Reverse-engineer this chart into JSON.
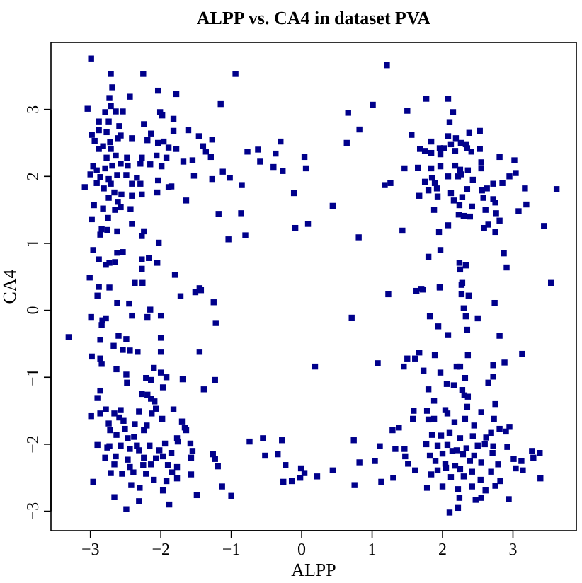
{
  "chart_data": {
    "type": "scatter",
    "title": "ALPP vs. CA4 in dataset PVA",
    "xlabel": "ALPP",
    "ylabel": "CA4",
    "marker": "square",
    "color": "#00008b",
    "xlim": [
      -3.56,
      3.9
    ],
    "ylim": [
      -3.29,
      4.0
    ],
    "xticks": [
      {
        "value": -3,
        "label": "−3"
      },
      {
        "value": -2,
        "label": "−2"
      },
      {
        "value": -1,
        "label": "−1"
      },
      0,
      1,
      2,
      3
    ],
    "yticks": [
      {
        "value": -3,
        "label": "−3"
      },
      {
        "value": -2,
        "label": "−2"
      },
      {
        "value": -1,
        "label": "−1"
      },
      0,
      1,
      2,
      3
    ],
    "x": [
      -2.99,
      -2.71,
      -2.25,
      -0.94,
      -2.69,
      -2.04,
      -1.78,
      -2.73,
      -2.44,
      -3.04,
      -2.71,
      -1.15,
      -2.79,
      -2.64,
      -2.54,
      -2.01,
      -1.98,
      -1.82,
      -2.88,
      -2.74,
      -2.59,
      -2.24,
      -2.88,
      -2.77,
      -2.98,
      -2.61,
      -2.57,
      -2.14,
      -1.82,
      -1.61,
      -2.41,
      -2.19,
      -1.96,
      -1.46,
      -1.27,
      -2.94,
      -2.82,
      -2.72,
      -2.88,
      -2.71,
      -2.04,
      -1.89,
      -1.78,
      -1.4,
      -1.36,
      -1.29,
      -0.77,
      -0.62,
      -0.3,
      -0.37,
      0.04,
      -2.77,
      -2.64,
      -2.48,
      -2.27,
      -2.06,
      -1.92,
      -1.68,
      -1.55,
      -0.59,
      -0.4,
      -0.27,
      0.06,
      -2.96,
      -2.91,
      -2.79,
      -2.69,
      -2.57,
      -2.47,
      -2.29,
      -2.15,
      -1.99,
      -3.0,
      -2.86,
      -2.74,
      -2.62,
      -2.49,
      -2.34,
      -1.53,
      -1.12,
      -1.02,
      -1.27,
      -0.85,
      -2.91,
      -2.71,
      -2.41,
      -2.29,
      -2.04,
      -1.89,
      -3.08,
      -2.81,
      -2.66,
      -2.56,
      -2.41,
      -2.27,
      -2.05,
      -1.85,
      -2.74,
      -2.61,
      -1.64,
      -0.11,
      -2.95,
      -2.82,
      -2.65,
      -2.57,
      -2.43,
      -2.98,
      -2.75,
      -1.18,
      -0.86,
      -2.41,
      -2.84,
      -2.76,
      -2.62,
      -2.24,
      -2.27,
      -1.04,
      -0.8,
      -0.09,
      0.09,
      -2.86,
      -2.03,
      -2.96,
      -2.62,
      -2.54,
      -2.88,
      -2.78,
      -2.73,
      -2.65,
      -2.27,
      -2.17,
      -2.05,
      -2.27,
      -3.01,
      -1.8,
      -2.88,
      -2.73,
      -2.37,
      -2.26,
      -1.45,
      -2.9,
      -1.72,
      -1.51,
      -1.43,
      -2.62,
      -2.45,
      -2.15,
      -1.25,
      -2.99,
      -2.83,
      -2.78,
      -2.84,
      -2.41,
      -2.19,
      -2.0,
      -1.22,
      -3.31,
      -2.86,
      -2.6,
      -2.49,
      -2.0,
      -2.67,
      -2.54,
      -2.44,
      -2.33,
      -2.0,
      -1.45,
      -2.98,
      -2.86,
      -2.84,
      -2.63,
      -2.49,
      -2.48,
      -2.1,
      -2.0,
      -1.92,
      -2.21,
      -2.14,
      -1.69,
      -1.23,
      -1.97,
      -1.39,
      -2.86,
      -2.9,
      -2.27,
      -2.19,
      -2.14,
      -2.09,
      -1.82,
      -2.07,
      -2.99,
      -2.86,
      -2.78,
      -2.57,
      -2.66,
      -2.59,
      -2.53,
      -2.31,
      -2.13,
      -1.98,
      -1.7,
      -2.74,
      -2.37,
      -2.2,
      -1.66,
      -2.72,
      -2.51,
      -2.24,
      -1.64,
      -2.63,
      -2.47,
      -2.38,
      -1.77,
      -1.58,
      -2.9,
      -2.73,
      -2.57,
      -2.34,
      -2.16,
      -1.94,
      -1.76,
      -2.76,
      -2.44,
      -2.31,
      -2.02,
      -1.85,
      -1.55,
      -1.26,
      -0.74,
      -0.55,
      -0.28,
      -2.79,
      -2.64,
      -2.47,
      -2.24,
      -2.07,
      -1.97,
      -1.57,
      -1.23,
      -0.52,
      -0.34,
      -2.66,
      -2.44,
      -2.25,
      -2.14,
      -1.9,
      -1.77,
      -1.19,
      -0.23,
      -0.01,
      -2.71,
      -2.55,
      -2.39,
      -2.21,
      -1.84,
      -1.57,
      0.04,
      0.22,
      -2.96,
      -2.1,
      -1.92,
      -1.77,
      -0.26,
      -0.14,
      -0.02,
      -2.42,
      -2.3,
      -1.97,
      -1.13,
      -2.66,
      -2.31,
      -1.88,
      -1.49,
      -1.0,
      -2.49,
      1.21,
      1.77,
      2.08,
      1.01,
      0.66,
      1.5,
      2.15,
      2.1,
      0.82,
      0.64,
      1.56,
      2.08,
      2.19,
      2.38,
      2.53,
      1.84,
      2.12,
      2.26,
      2.33,
      1.68,
      1.75,
      1.84,
      1.96,
      2.02,
      1.97,
      2.18,
      2.35,
      2.41,
      2.53,
      2.81,
      3.02,
      1.46,
      1.65,
      1.84,
      1.97,
      2.18,
      2.25,
      2.36,
      2.55,
      2.55,
      3.04,
      2.95,
      1.75,
      1.85,
      1.89,
      2.08,
      2.22,
      2.26,
      2.43,
      2.72,
      2.85,
      1.18,
      1.26,
      1.67,
      1.8,
      1.92,
      1.93,
      2.12,
      2.28,
      2.35,
      2.56,
      2.63,
      2.58,
      2.72,
      2.75,
      3.17,
      3.62,
      0.44,
      1.88,
      2.16,
      2.24,
      2.42,
      2.61,
      3.19,
      3.08,
      2.23,
      2.3,
      2.39,
      2.76,
      2.81,
      2.08,
      2.59,
      2.65,
      2.75,
      3.44,
      1.43,
      1.95,
      0.81,
      1.97,
      2.87,
      1.8,
      2.24,
      2.33,
      2.25,
      2.91,
      2.28,
      3.54,
      1.96,
      1.7,
      1.23,
      1.63,
      1.72,
      1.96,
      2.27,
      2.27,
      2.37,
      2.74,
      0.71,
      1.82,
      2.3,
      2.33,
      2.5,
      1.94,
      2.35,
      2.08,
      2.81,
      0.19,
      1.08,
      1.5,
      1.61,
      1.67,
      1.45,
      1.89,
      2.36,
      2.88,
      3.13,
      1.73,
      1.97,
      2.2,
      2.25,
      2.72,
      2.32,
      2.65,
      2.72,
      2.06,
      2.16,
      1.8,
      2.28,
      2.31,
      2.36,
      1.88,
      2.75,
      2.04,
      2.35,
      1.59,
      1.78,
      2.07,
      2.55,
      1.58,
      1.8,
      1.88,
      2.17,
      2.32,
      2.45,
      2.73,
      1.38,
      1.29,
      1.85,
      1.98,
      2.1,
      2.25,
      2.43,
      2.62,
      2.69,
      2.81,
      2.95,
      2.9,
      0.74,
      1.11,
      1.33,
      1.46,
      1.77,
      1.93,
      2.07,
      2.2,
      2.34,
      2.5,
      2.6,
      2.72,
      2.92,
      1.82,
      2.0,
      2.14,
      2.29,
      2.45,
      2.71,
      1.47,
      3.27,
      3.38,
      0.82,
      1.04,
      1.51,
      1.9,
      2.04,
      2.18,
      2.39,
      2.55,
      2.79,
      3.01,
      3.12,
      3.29,
      0.44,
      1.61,
      1.93,
      2.05,
      2.25,
      2.42,
      2.69,
      3.04,
      3.14,
      1.3,
      1.13,
      1.84,
      2.12,
      2.3,
      2.54,
      2.82,
      3.39,
      0.75,
      1.78,
      2.0,
      2.22,
      2.42,
      2.61,
      2.75,
      2.24,
      2.47,
      2.55,
      2.94,
      2.22,
      2.1
    ],
    "values": [
      3.76,
      3.53,
      3.53,
      3.53,
      3.33,
      3.28,
      3.23,
      3.17,
      3.19,
      3.01,
      3.05,
      3.08,
      2.96,
      2.97,
      2.97,
      2.96,
      2.91,
      2.86,
      2.82,
      2.82,
      2.75,
      2.78,
      2.69,
      2.66,
      2.62,
      2.57,
      2.61,
      2.64,
      2.68,
      2.69,
      2.57,
      2.54,
      2.52,
      2.6,
      2.55,
      2.53,
      2.45,
      2.51,
      2.41,
      2.41,
      2.5,
      2.43,
      2.41,
      2.45,
      2.37,
      2.29,
      2.37,
      2.4,
      2.52,
      2.34,
      2.29,
      2.28,
      2.31,
      2.28,
      2.28,
      2.31,
      2.28,
      2.22,
      2.24,
      2.22,
      2.14,
      2.08,
      2.12,
      2.15,
      2.09,
      2.12,
      2.16,
      2.19,
      2.16,
      2.19,
      2.18,
      2.15,
      2.03,
      1.99,
      1.96,
      2.02,
      2.02,
      1.98,
      2.01,
      2.07,
      1.98,
      1.96,
      1.87,
      1.9,
      1.89,
      1.89,
      1.89,
      1.94,
      1.84,
      1.84,
      1.82,
      1.76,
      1.73,
      1.71,
      1.73,
      1.76,
      1.85,
      1.68,
      1.62,
      1.64,
      1.75,
      1.57,
      1.52,
      1.5,
      1.54,
      1.51,
      1.36,
      1.38,
      1.44,
      1.45,
      1.29,
      1.21,
      1.2,
      1.18,
      1.18,
      1.11,
      1.06,
      1.12,
      1.23,
      1.29,
      1.13,
      1.01,
      0.9,
      0.86,
      0.87,
      0.76,
      0.68,
      0.71,
      0.72,
      0.76,
      0.78,
      0.71,
      0.62,
      0.49,
      0.53,
      0.35,
      0.34,
      0.41,
      0.41,
      0.33,
      0.22,
      0.21,
      0.27,
      0.3,
      0.11,
      0.1,
      0.01,
      0.12,
      -0.1,
      -0.15,
      -0.12,
      -0.22,
      -0.08,
      -0.1,
      -0.08,
      -0.19,
      -0.4,
      -0.44,
      -0.38,
      -0.43,
      -0.41,
      -0.53,
      -0.59,
      -0.6,
      -0.62,
      -0.62,
      -0.62,
      -0.69,
      -0.72,
      -0.8,
      -0.88,
      -0.96,
      -1.08,
      -0.86,
      -0.93,
      -1.0,
      -1.01,
      -1.04,
      -1.03,
      -1.04,
      -1.15,
      -1.18,
      -1.2,
      -1.31,
      -1.25,
      -1.26,
      -1.32,
      -1.36,
      -1.48,
      -1.47,
      -1.58,
      -1.54,
      -1.48,
      -1.49,
      -1.54,
      -1.6,
      -1.65,
      -1.51,
      -1.54,
      -1.62,
      -1.66,
      -1.69,
      -1.7,
      -1.72,
      -1.75,
      -1.79,
      -1.77,
      -1.79,
      -1.79,
      -1.86,
      -1.91,
      -1.89,
      -1.91,
      -1.99,
      -2.01,
      -2.03,
      -2.02,
      -2.02,
      -2.02,
      -1.99,
      -1.96,
      -2.05,
      -2.07,
      -2.09,
      -2.09,
      -2.13,
      -2.1,
      -2.15,
      -1.96,
      -1.91,
      -1.94,
      -2.2,
      -2.18,
      -2.23,
      -2.2,
      -2.21,
      -2.18,
      -2.2,
      -2.22,
      -2.17,
      -2.15,
      -2.3,
      -2.34,
      -2.31,
      -2.3,
      -2.31,
      -2.34,
      -2.33,
      -2.31,
      -2.36,
      -2.43,
      -2.44,
      -2.42,
      -2.44,
      -2.42,
      -2.45,
      -2.43,
      -2.48,
      -2.56,
      -2.53,
      -2.55,
      -2.51,
      -2.56,
      -2.55,
      -2.5,
      -2.61,
      -2.65,
      -2.69,
      -2.63,
      -2.79,
      -2.85,
      -2.9,
      -2.76,
      -2.77,
      -2.97,
      3.66,
      3.16,
      3.16,
      3.07,
      2.95,
      2.98,
      2.96,
      2.81,
      2.7,
      2.5,
      2.62,
      2.6,
      2.57,
      2.65,
      2.68,
      2.52,
      2.48,
      2.5,
      2.48,
      2.41,
      2.38,
      2.35,
      2.42,
      2.42,
      2.33,
      2.38,
      2.42,
      2.37,
      2.41,
      2.29,
      2.24,
      2.12,
      2.13,
      2.12,
      2.15,
      2.16,
      2.1,
      2.09,
      2.21,
      2.12,
      2.05,
      2.0,
      1.92,
      1.98,
      1.9,
      2.0,
      2.0,
      2.03,
      1.95,
      1.89,
      1.9,
      1.87,
      1.9,
      1.71,
      1.79,
      1.82,
      1.7,
      1.75,
      1.69,
      1.81,
      1.79,
      1.82,
      1.68,
      1.66,
      1.61,
      1.82,
      1.81,
      1.56,
      1.5,
      1.64,
      1.57,
      1.55,
      1.5,
      1.58,
      1.48,
      1.43,
      1.41,
      1.4,
      1.45,
      1.34,
      1.27,
      1.23,
      1.28,
      1.17,
      1.26,
      1.19,
      1.17,
      1.09,
      0.9,
      0.85,
      0.8,
      0.71,
      0.67,
      0.61,
      0.64,
      0.41,
      0.41,
      0.35,
      0.32,
      0.24,
      0.29,
      0.31,
      0.34,
      0.38,
      0.24,
      0.22,
      0.11,
      -0.11,
      -0.09,
      0.03,
      -0.09,
      -0.12,
      -0.24,
      -0.29,
      -0.37,
      -0.38,
      -0.84,
      -0.79,
      -0.72,
      -0.72,
      -0.63,
      -0.84,
      -0.67,
      -0.67,
      -0.78,
      -0.65,
      -0.9,
      -0.93,
      -0.84,
      -0.84,
      -0.82,
      -1.01,
      -1.08,
      -0.99,
      -1.1,
      -1.12,
      -1.18,
      -1.19,
      -1.27,
      -1.29,
      -1.35,
      -1.4,
      -1.49,
      -1.44,
      -1.5,
      -1.5,
      -1.54,
      -1.52,
      -1.62,
      -1.63,
      -1.62,
      -1.67,
      -1.62,
      -1.72,
      -1.62,
      -1.75,
      -1.79,
      -1.86,
      -1.87,
      -1.83,
      -1.91,
      -1.88,
      -1.9,
      -1.83,
      -1.77,
      -1.74,
      -1.81,
      -1.94,
      -2.03,
      -2.07,
      -2.07,
      -2.0,
      -2.02,
      -2.01,
      -2.09,
      -2.06,
      -2.02,
      -2.0,
      -2.03,
      -2.04,
      -2.17,
      -2.14,
      -2.1,
      -2.15,
      -2.17,
      -2.13,
      -2.18,
      -2.1,
      -2.13,
      -2.27,
      -2.25,
      -2.29,
      -2.25,
      -2.29,
      -2.32,
      -2.25,
      -2.27,
      -2.3,
      -2.22,
      -2.25,
      -2.2,
      -2.39,
      -2.39,
      -2.39,
      -2.35,
      -2.37,
      -2.41,
      -2.41,
      -2.36,
      -2.39,
      -2.5,
      -2.56,
      -2.45,
      -2.49,
      -2.48,
      -2.53,
      -2.55,
      -2.51,
      -2.61,
      -2.65,
      -2.63,
      -2.67,
      -2.63,
      -2.69,
      -2.62,
      -2.8,
      -2.83,
      -2.8,
      -2.82,
      -2.95,
      -3.02
    ]
  }
}
